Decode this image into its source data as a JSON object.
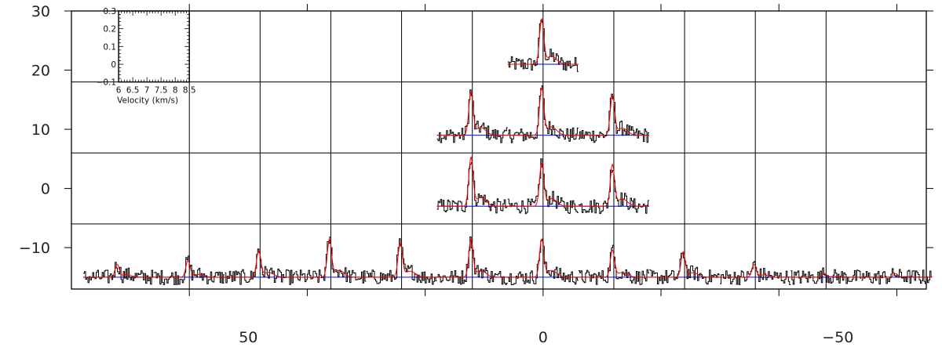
{
  "chart_data": {
    "type": "line",
    "title": "",
    "xlabel": "",
    "ylabel": "",
    "xlim": [
      80,
      -65
    ],
    "ylim": [
      -17,
      30
    ],
    "x_ticks": [
      {
        "value": 50,
        "label": "50"
      },
      {
        "value": 0,
        "label": "0"
      },
      {
        "value": -50,
        "label": "−50"
      }
    ],
    "y_ticks": [
      {
        "value": 30,
        "label": "30"
      },
      {
        "value": 20,
        "label": "20"
      },
      {
        "value": 10,
        "label": "10"
      },
      {
        "value": 0,
        "label": "0"
      },
      {
        "value": -10,
        "label": "−10"
      }
    ],
    "grid": true,
    "grid_x_lines": [
      60,
      48,
      36,
      24,
      12,
      0,
      -12,
      -24,
      -36,
      -48
    ],
    "grid_y_lines": [
      18,
      6,
      -6
    ],
    "cell_size": 12,
    "series_colors": {
      "observed": "#000000",
      "fit": "#ff0000",
      "baseline": "#0000ff"
    },
    "inset": {
      "xlabel": "Velocity (km/s)",
      "xlim": [
        6,
        8.5
      ],
      "ylim": [
        -0.1,
        0.3
      ],
      "x_tick_labels": [
        "6",
        "6.5",
        "7",
        "7.5",
        "8",
        "8.5"
      ],
      "y_tick_labels": [
        "0.3",
        "0.2",
        "0.1",
        "0",
        "−0.1"
      ]
    },
    "spectra": [
      {
        "offset_x": 0,
        "offset_y": 24,
        "peak": 0.25
      },
      {
        "offset_x": 12,
        "offset_y": 12,
        "peak": 0.24
      },
      {
        "offset_x": 0,
        "offset_y": 12,
        "peak": 0.26
      },
      {
        "offset_x": -12,
        "offset_y": 12,
        "peak": 0.22
      },
      {
        "offset_x": 12,
        "offset_y": 0,
        "peak": 0.27
      },
      {
        "offset_x": 0,
        "offset_y": 0,
        "peak": 0.24
      },
      {
        "offset_x": -12,
        "offset_y": 0,
        "peak": 0.23
      },
      {
        "offset_x": 72,
        "offset_y": -12,
        "peak": 0.07
      },
      {
        "offset_x": 60,
        "offset_y": -12,
        "peak": 0.09
      },
      {
        "offset_x": 48,
        "offset_y": -12,
        "peak": 0.15
      },
      {
        "offset_x": 36,
        "offset_y": -12,
        "peak": 0.21
      },
      {
        "offset_x": 24,
        "offset_y": -12,
        "peak": 0.19
      },
      {
        "offset_x": 12,
        "offset_y": -12,
        "peak": 0.21
      },
      {
        "offset_x": 0,
        "offset_y": -12,
        "peak": 0.21
      },
      {
        "offset_x": -12,
        "offset_y": -12,
        "peak": 0.15
      },
      {
        "offset_x": -24,
        "offset_y": -12,
        "peak": 0.14
      },
      {
        "offset_x": -36,
        "offset_y": -12,
        "peak": 0.07
      },
      {
        "offset_x": -48,
        "offset_y": -12,
        "peak": 0.02
      },
      {
        "offset_x": -60,
        "offset_y": -12,
        "peak": 0.02
      }
    ]
  }
}
